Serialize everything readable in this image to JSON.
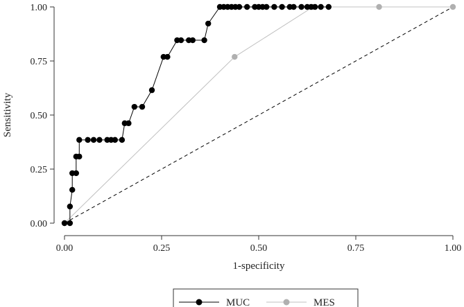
{
  "chart_data": {
    "type": "line",
    "title": "",
    "xlabel": "1-specificity",
    "ylabel": "Sensitivity",
    "xlim": [
      0,
      1
    ],
    "ylim": [
      0,
      1
    ],
    "grid": false,
    "legend_position": "bottom",
    "x_ticks": [
      0,
      0.25,
      0.5,
      0.75,
      1
    ],
    "x_tick_labels": [
      "0.00",
      "0.25",
      "0.50",
      "0.75",
      "1.00"
    ],
    "y_ticks": [
      0,
      0.25,
      0.5,
      0.75,
      1
    ],
    "y_tick_labels": [
      "0.00",
      "0.25",
      "0.50",
      "0.75",
      "1.00"
    ],
    "reference_line": {
      "from": [
        0,
        0
      ],
      "to": [
        1,
        1
      ],
      "style": "dashed",
      "color": "#000000"
    },
    "series": [
      {
        "name": "MUC",
        "color": "#000000",
        "line_color": "#000000",
        "points": [
          [
            0,
            0
          ],
          [
            0.014,
            0
          ],
          [
            0.014,
            0.077
          ],
          [
            0.02,
            0.154
          ],
          [
            0.02,
            0.231
          ],
          [
            0.03,
            0.231
          ],
          [
            0.03,
            0.308
          ],
          [
            0.038,
            0.308
          ],
          [
            0.038,
            0.385
          ],
          [
            0.06,
            0.385
          ],
          [
            0.075,
            0.385
          ],
          [
            0.09,
            0.385
          ],
          [
            0.11,
            0.385
          ],
          [
            0.12,
            0.385
          ],
          [
            0.13,
            0.385
          ],
          [
            0.148,
            0.385
          ],
          [
            0.155,
            0.462
          ],
          [
            0.165,
            0.462
          ],
          [
            0.18,
            0.538
          ],
          [
            0.2,
            0.538
          ],
          [
            0.225,
            0.615
          ],
          [
            0.255,
            0.769
          ],
          [
            0.265,
            0.769
          ],
          [
            0.29,
            0.846
          ],
          [
            0.3,
            0.846
          ],
          [
            0.32,
            0.846
          ],
          [
            0.33,
            0.846
          ],
          [
            0.36,
            0.846
          ],
          [
            0.37,
            0.923
          ],
          [
            0.4,
            1
          ],
          [
            0.41,
            1
          ],
          [
            0.42,
            1
          ],
          [
            0.43,
            1
          ],
          [
            0.44,
            1
          ],
          [
            0.45,
            1
          ],
          [
            0.47,
            1
          ],
          [
            0.49,
            1
          ],
          [
            0.5,
            1
          ],
          [
            0.51,
            1
          ],
          [
            0.52,
            1
          ],
          [
            0.54,
            1
          ],
          [
            0.56,
            1
          ],
          [
            0.58,
            1
          ],
          [
            0.59,
            1
          ],
          [
            0.61,
            1
          ],
          [
            0.625,
            1
          ],
          [
            0.635,
            1
          ],
          [
            0.645,
            1
          ],
          [
            0.66,
            1
          ],
          [
            0.68,
            1
          ]
        ]
      },
      {
        "name": "MES",
        "color": "#b0b0b0",
        "line_color": "#c0c0c0",
        "points": [
          [
            0,
            0
          ],
          [
            0.438,
            0.769
          ],
          [
            0.64,
            1
          ],
          [
            0.81,
            1
          ],
          [
            1,
            1
          ]
        ]
      }
    ]
  }
}
